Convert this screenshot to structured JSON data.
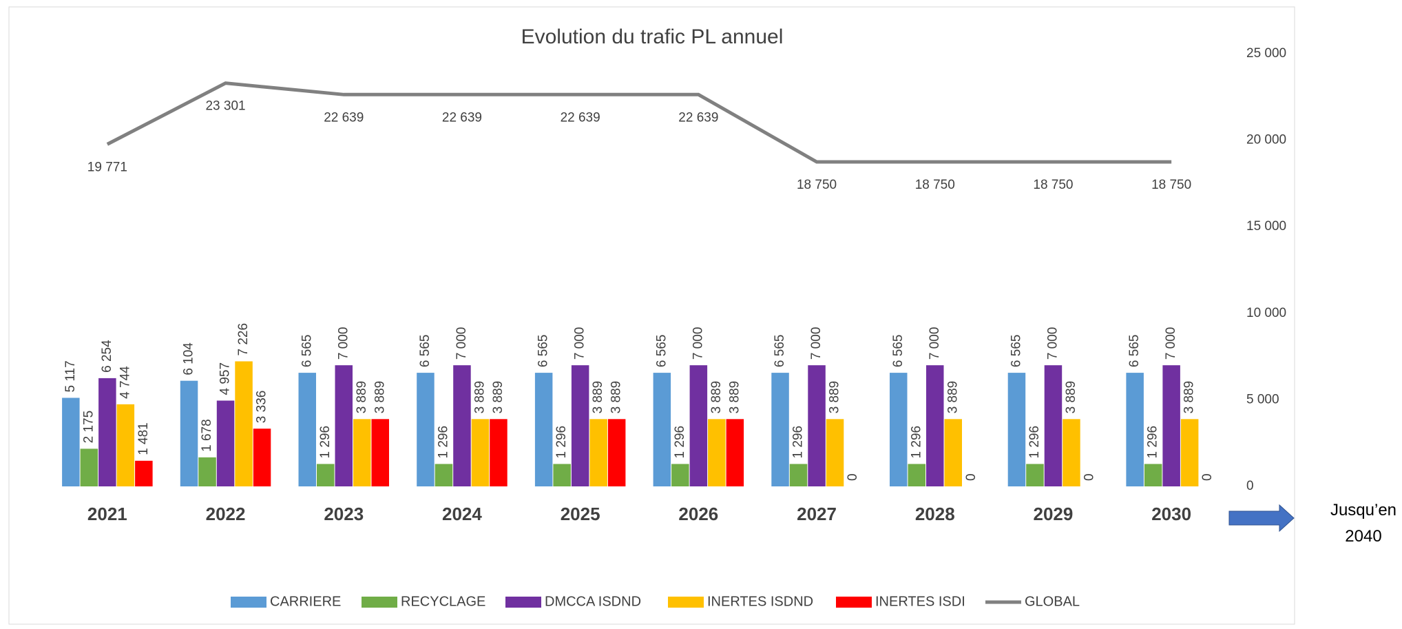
{
  "chart_data": {
    "type": "bar",
    "title": "Evolution du trafic PL annuel",
    "categories": [
      "2021",
      "2022",
      "2023",
      "2024",
      "2025",
      "2026",
      "2027",
      "2028",
      "2029",
      "2030"
    ],
    "series": [
      {
        "name": "CARRIERE",
        "color": "#5b9bd5",
        "values": [
          5117,
          6104,
          6565,
          6565,
          6565,
          6565,
          6565,
          6565,
          6565,
          6565
        ],
        "value_labels": [
          "5 117",
          "6 104",
          "6 565",
          "6 565",
          "6 565",
          "6 565",
          "6 565",
          "6 565",
          "6 565",
          "6 565"
        ]
      },
      {
        "name": "RECYCLAGE",
        "color": "#70ad47",
        "values": [
          2175,
          1678,
          1296,
          1296,
          1296,
          1296,
          1296,
          1296,
          1296,
          1296
        ],
        "value_labels": [
          "2 175",
          "1 678",
          "1 296",
          "1 296",
          "1 296",
          "1 296",
          "1 296",
          "1 296",
          "1 296",
          "1 296"
        ]
      },
      {
        "name": "DMCCA ISDND",
        "color": "#7030a0",
        "values": [
          6254,
          4957,
          7000,
          7000,
          7000,
          7000,
          7000,
          7000,
          7000,
          7000
        ],
        "value_labels": [
          "6 254",
          "4 957",
          "7 000",
          "7 000",
          "7 000",
          "7 000",
          "7 000",
          "7 000",
          "7 000",
          "7 000"
        ]
      },
      {
        "name": "INERTES ISDND",
        "color": "#ffc000",
        "values": [
          4744,
          7226,
          3889,
          3889,
          3889,
          3889,
          3889,
          3889,
          3889,
          3889
        ],
        "value_labels": [
          "4 744",
          "7 226",
          "3 889",
          "3 889",
          "3 889",
          "3 889",
          "3 889",
          "3 889",
          "3 889",
          "3 889"
        ]
      },
      {
        "name": "INERTES ISDI",
        "color": "#ff0000",
        "values": [
          1481,
          3336,
          3889,
          3889,
          3889,
          3889,
          0,
          0,
          0,
          0
        ],
        "value_labels": [
          "1 481",
          "3 336",
          "3 889",
          "3 889",
          "3 889",
          "3 889",
          "0",
          "0",
          "0",
          "0"
        ]
      },
      {
        "name": "GLOBAL",
        "color": "#808080",
        "kind": "line",
        "values": [
          19771,
          23301,
          22639,
          22639,
          22639,
          22639,
          18750,
          18750,
          18750,
          18750
        ],
        "value_labels": [
          "19 771",
          "23 301",
          "22 639",
          "22 639",
          "22 639",
          "22 639",
          "18 750",
          "18 750",
          "18 750",
          "18 750"
        ]
      }
    ],
    "ylim": [
      0,
      25000
    ],
    "yticks": [
      0,
      {
        "value": 5000,
        "label": "5 000"
      },
      {
        "value": 10000,
        "label": "10 000"
      },
      {
        "value": 15000,
        "label": "15 000"
      },
      {
        "value": 20000,
        "label": "20 000"
      },
      {
        "value": 25000,
        "label": "25 000"
      }
    ],
    "grid": false,
    "legend": "bottom",
    "annotation": "Jusqu’en 2040"
  }
}
